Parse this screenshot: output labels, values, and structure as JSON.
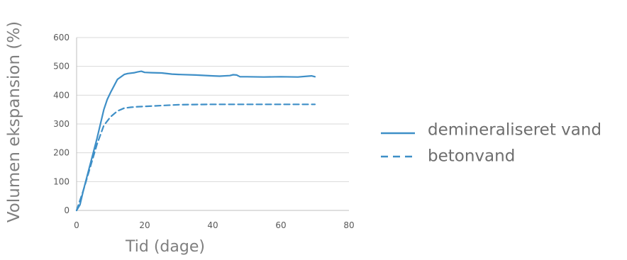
{
  "chart_data": {
    "type": "line",
    "xlabel": "Tid (dage)",
    "ylabel": "Volumen ekspansion (%)",
    "xlim": [
      0,
      80
    ],
    "ylim": [
      0,
      600
    ],
    "x_ticks": [
      "0",
      "20",
      "40",
      "60",
      "80"
    ],
    "y_ticks": [
      "0",
      "100",
      "200",
      "300",
      "400",
      "500",
      "600"
    ],
    "grid": "horizontal",
    "legend_position": "right",
    "series": [
      {
        "name": "demineraliseret vand",
        "color": "#3e8fc7",
        "style": "solid",
        "x": [
          0,
          1,
          2,
          4,
          6,
          8,
          9,
          10,
          12,
          14,
          15,
          17,
          18,
          19,
          20,
          22,
          25,
          28,
          30,
          35,
          40,
          42,
          45,
          46,
          47,
          48,
          50,
          55,
          60,
          65,
          68,
          69,
          70
        ],
        "values": [
          0,
          20,
          70,
          160,
          250,
          350,
          385,
          410,
          455,
          472,
          475,
          478,
          481,
          483,
          479,
          478,
          477,
          473,
          472,
          470,
          467,
          466,
          468,
          471,
          470,
          464,
          464,
          463,
          464,
          463,
          466,
          467,
          464
        ]
      },
      {
        "name": "betonvand",
        "color": "#3e8fc7",
        "style": "dashed",
        "x": [
          0,
          2,
          4,
          6,
          8,
          10,
          12,
          14,
          16,
          18,
          20,
          25,
          30,
          40,
          50,
          60,
          65,
          70
        ],
        "values": [
          0,
          70,
          150,
          230,
          295,
          325,
          345,
          355,
          358,
          360,
          361,
          364,
          367,
          368,
          368,
          368,
          368,
          368
        ]
      }
    ]
  }
}
